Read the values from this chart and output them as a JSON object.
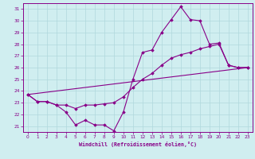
{
  "xlabel": "Windchill (Refroidissement éolien,°C)",
  "bg_color": "#d0eef0",
  "line_color": "#880088",
  "grid_color": "#b0d8dc",
  "spine_color": "#880088",
  "xlim": [
    -0.5,
    23.5
  ],
  "ylim": [
    20.5,
    31.5
  ],
  "yticks": [
    21,
    22,
    23,
    24,
    25,
    26,
    27,
    28,
    29,
    30,
    31
  ],
  "xticks": [
    0,
    1,
    2,
    3,
    4,
    5,
    6,
    7,
    8,
    9,
    10,
    11,
    12,
    13,
    14,
    15,
    16,
    17,
    18,
    19,
    20,
    21,
    22,
    23
  ],
  "series": [
    {
      "x": [
        0,
        1,
        2,
        3,
        4,
        5,
        6,
        7,
        8,
        9,
        10,
        11,
        12,
        13,
        14,
        15,
        16,
        17,
        18,
        19,
        20,
        21,
        22,
        23
      ],
      "y": [
        23.7,
        23.1,
        23.1,
        22.8,
        22.2,
        21.1,
        21.5,
        21.1,
        21.1,
        20.6,
        22.2,
        25.0,
        27.3,
        27.5,
        29.0,
        30.1,
        31.2,
        30.1,
        30.0,
        28.0,
        28.1,
        26.2,
        26.0,
        26.0
      ],
      "marker": true
    },
    {
      "x": [
        0,
        1,
        2,
        3,
        4,
        5,
        6,
        7,
        8,
        9,
        10,
        11,
        12,
        13,
        14,
        15,
        16,
        17,
        18,
        19,
        20,
        21,
        22,
        23
      ],
      "y": [
        23.7,
        23.1,
        23.1,
        22.8,
        22.8,
        22.5,
        22.8,
        22.8,
        22.9,
        23.0,
        23.5,
        24.3,
        25.0,
        25.5,
        26.2,
        26.8,
        27.1,
        27.3,
        27.6,
        27.8,
        28.0,
        26.2,
        26.0,
        26.0
      ],
      "marker": true
    },
    {
      "x": [
        0,
        23
      ],
      "y": [
        23.7,
        26.0
      ],
      "marker": false
    }
  ]
}
